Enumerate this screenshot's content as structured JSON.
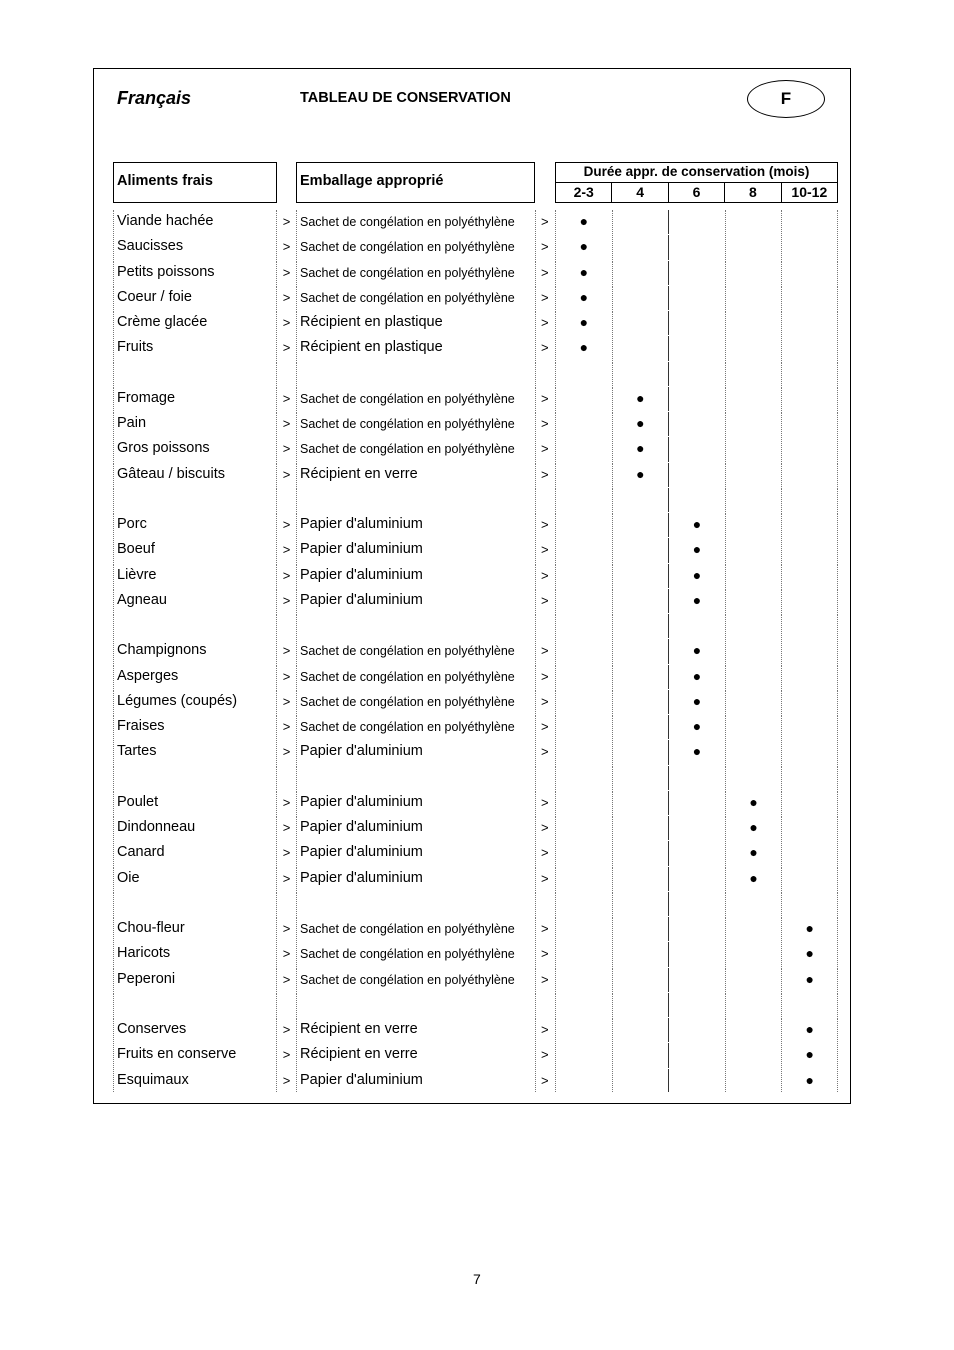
{
  "header": {
    "language": "Français",
    "title": "TABLEAU DE CONSERVATION",
    "badge": "F"
  },
  "table": {
    "col_food": "Aliments frais",
    "col_packaging": "Emballage approprié",
    "col_duration": "Durée appr. de conservation (mois)",
    "durations": [
      "2-3",
      "4",
      "6",
      "8",
      "10-12"
    ],
    "arrow": ">",
    "marker": "●",
    "rows": [
      {
        "food": "Viande hachée",
        "packaging": "Sachet de congélation en polyéthylène",
        "duration": "2-3"
      },
      {
        "food": "Saucisses",
        "packaging": "Sachet de congélation en polyéthylène",
        "duration": "2-3"
      },
      {
        "food": "Petits poissons",
        "packaging": "Sachet de congélation en polyéthylène",
        "duration": "2-3"
      },
      {
        "food": "Coeur / foie",
        "packaging": "Sachet de congélation en polyéthylène",
        "duration": "2-3"
      },
      {
        "food": "Crème glacée",
        "packaging": "Récipient en plastique",
        "duration": "2-3"
      },
      {
        "food": "Fruits",
        "packaging": "Récipient en plastique",
        "duration": "2-3"
      },
      null,
      {
        "food": "Fromage",
        "packaging": "Sachet de congélation en polyéthylène",
        "duration": "4"
      },
      {
        "food": "Pain",
        "packaging": "Sachet de congélation en polyéthylène",
        "duration": "4"
      },
      {
        "food": "Gros poissons",
        "packaging": "Sachet de congélation en polyéthylène",
        "duration": "4"
      },
      {
        "food": "Gâteau / biscuits",
        "packaging": "Récipient en verre",
        "duration": "4"
      },
      null,
      {
        "food": "Porc",
        "packaging": "Papier d'aluminium",
        "duration": "6"
      },
      {
        "food": "Boeuf",
        "packaging": "Papier d'aluminium",
        "duration": "6"
      },
      {
        "food": "Lièvre",
        "packaging": "Papier d'aluminium",
        "duration": "6"
      },
      {
        "food": "Agneau",
        "packaging": "Papier d'aluminium",
        "duration": "6"
      },
      null,
      {
        "food": "Champignons",
        "packaging": "Sachet de congélation en polyéthylène",
        "duration": "6"
      },
      {
        "food": "Asperges",
        "packaging": "Sachet de congélation en polyéthylène",
        "duration": "6"
      },
      {
        "food": "Légumes (coupés)",
        "packaging": "Sachet de congélation en polyéthylène",
        "duration": "6"
      },
      {
        "food": "Fraises",
        "packaging": "Sachet de congélation en polyéthylène",
        "duration": "6"
      },
      {
        "food": "Tartes",
        "packaging": "Papier d'aluminium",
        "duration": "6"
      },
      null,
      {
        "food": "Poulet",
        "packaging": "Papier d'aluminium",
        "duration": "8"
      },
      {
        "food": "Dindonneau",
        "packaging": "Papier d'aluminium",
        "duration": "8"
      },
      {
        "food": "Canard",
        "packaging": "Papier d'aluminium",
        "duration": "8"
      },
      {
        "food": "Oie",
        "packaging": "Papier d'aluminium",
        "duration": "8"
      },
      null,
      {
        "food": "Chou-fleur",
        "packaging": "Sachet de congélation en polyéthylène",
        "duration": "10-12"
      },
      {
        "food": "Haricots",
        "packaging": "Sachet de congélation en polyéthylène",
        "duration": "10-12"
      },
      {
        "food": "Peperoni",
        "packaging": "Sachet de congélation en polyéthylène",
        "duration": "10-12"
      },
      null,
      {
        "food": "Conserves",
        "packaging": "Récipient en verre",
        "duration": "10-12"
      },
      {
        "food": "Fruits en conserve",
        "packaging": "Récipient en verre",
        "duration": "10-12"
      },
      {
        "food": "Esquimaux",
        "packaging": "Papier d'aluminium",
        "duration": "10-12"
      }
    ]
  },
  "footer": {
    "page_number": "7"
  }
}
